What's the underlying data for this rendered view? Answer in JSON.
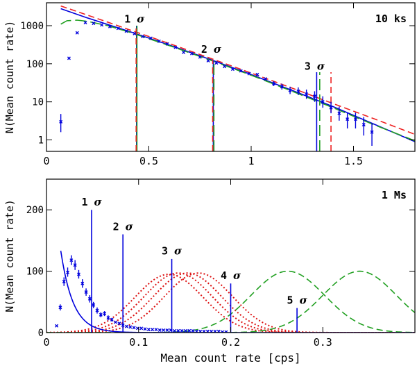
{
  "chart_data": [
    {
      "type": "scatter",
      "panel_label": "10 ks",
      "ylabel": "N(Mean count rate)",
      "xlabel": "",
      "yscale": "log",
      "xlim": [
        0,
        1.8
      ],
      "ylim": [
        0.5,
        4000
      ],
      "x_ticks": [
        0,
        0.5,
        1,
        1.5
      ],
      "x_tick_labels": [
        "0",
        "0.5",
        "1",
        "1.5"
      ],
      "y_ticks": [
        1,
        10,
        100,
        1000
      ],
      "y_tick_labels": [
        "1",
        "10",
        "100",
        "1000"
      ],
      "points": [
        {
          "x": 0.07,
          "y": 3.0,
          "lo": 1.6,
          "hi": 4.8
        },
        {
          "x": 0.11,
          "y": 140
        },
        {
          "x": 0.15,
          "y": 650
        },
        {
          "x": 0.19,
          "y": 1200
        },
        {
          "x": 0.23,
          "y": 1150
        },
        {
          "x": 0.27,
          "y": 1050
        },
        {
          "x": 0.31,
          "y": 950
        },
        {
          "x": 0.35,
          "y": 850
        },
        {
          "x": 0.39,
          "y": 720
        },
        {
          "x": 0.43,
          "y": 620
        },
        {
          "x": 0.47,
          "y": 520
        },
        {
          "x": 0.51,
          "y": 470
        },
        {
          "x": 0.55,
          "y": 390
        },
        {
          "x": 0.59,
          "y": 330
        },
        {
          "x": 0.63,
          "y": 270
        },
        {
          "x": 0.67,
          "y": 200
        },
        {
          "x": 0.71,
          "y": 185
        },
        {
          "x": 0.75,
          "y": 150
        },
        {
          "x": 0.79,
          "y": 120
        },
        {
          "x": 0.83,
          "y": 105
        },
        {
          "x": 0.87,
          "y": 85
        },
        {
          "x": 0.91,
          "y": 72
        },
        {
          "x": 0.95,
          "y": 65
        },
        {
          "x": 0.99,
          "y": 55
        },
        {
          "x": 1.03,
          "y": 52
        },
        {
          "x": 1.07,
          "y": 40
        },
        {
          "x": 1.11,
          "y": 30,
          "lo": 26,
          "hi": 35
        },
        {
          "x": 1.15,
          "y": 25,
          "lo": 21,
          "hi": 30
        },
        {
          "x": 1.19,
          "y": 20,
          "lo": 16,
          "hi": 25
        },
        {
          "x": 1.23,
          "y": 19,
          "lo": 15,
          "hi": 24
        },
        {
          "x": 1.27,
          "y": 16,
          "lo": 12,
          "hi": 21
        },
        {
          "x": 1.31,
          "y": 14,
          "lo": 10,
          "hi": 19
        },
        {
          "x": 1.35,
          "y": 10,
          "lo": 7,
          "hi": 14
        },
        {
          "x": 1.39,
          "y": 7,
          "lo": 5,
          "hi": 10
        },
        {
          "x": 1.43,
          "y": 5,
          "lo": 3.2,
          "hi": 7.5
        },
        {
          "x": 1.47,
          "y": 3.5,
          "lo": 2.0,
          "hi": 5.2
        },
        {
          "x": 1.51,
          "y": 3.5,
          "lo": 2.0,
          "hi": 5.2
        },
        {
          "x": 1.55,
          "y": 2.5,
          "lo": 1.3,
          "hi": 4.0
        },
        {
          "x": 1.59,
          "y": 1.6,
          "lo": 0.7,
          "hi": 2.8
        }
      ],
      "curves": [
        {
          "color": "#0000dd",
          "dash": "solid",
          "x": [
            0.07,
            0.2,
            0.4,
            0.6,
            0.8,
            1.0,
            1.2,
            1.4,
            1.6,
            1.8
          ],
          "y": [
            2800,
            1600,
            720,
            310,
            130,
            52,
            20,
            7.5,
            2.6,
            0.9
          ]
        },
        {
          "color": "#ee2222",
          "dash": "dashed",
          "x": [
            0.07,
            0.2,
            0.4,
            0.6,
            0.8,
            1.0,
            1.2,
            1.4,
            1.6,
            1.8
          ],
          "y": [
            3300,
            1900,
            800,
            340,
            140,
            57,
            23,
            9,
            3.6,
            1.4
          ]
        },
        {
          "color": "#22a022",
          "dash": "long-dash",
          "x": [
            0.07,
            0.1,
            0.15,
            0.2,
            0.3,
            0.4,
            0.6,
            0.8,
            1.0,
            1.2,
            1.4,
            1.6,
            1.8
          ],
          "y": [
            1100,
            1350,
            1400,
            1300,
            1000,
            690,
            300,
            125,
            50,
            19,
            7,
            2.5,
            0.95
          ]
        }
      ],
      "markers": [
        {
          "x": 0.44,
          "label": "1",
          "label_y": 1500,
          "top": 1000,
          "lines": [
            {
              "color": "#0000dd",
              "dash": "solid",
              "dx": 0
            },
            {
              "color": "#22a022",
              "dash": "solid",
              "dx": 0.002
            },
            {
              "color": "#ee2222",
              "dash": "dashed",
              "dx": -0.002
            }
          ]
        },
        {
          "x": 0.815,
          "label": "2",
          "label_y": 240,
          "top": 125,
          "lines": [
            {
              "color": "#0000dd",
              "dash": "solid",
              "dx": 0
            },
            {
              "color": "#22a022",
              "dash": "long-dash",
              "dx": 0.003
            },
            {
              "color": "#ee2222",
              "dash": "dashed",
              "dx": -0.003
            }
          ]
        },
        {
          "x": 1.32,
          "label": "3",
          "label_y": 85,
          "top": 60,
          "lines": [
            {
              "color": "#0000dd",
              "dash": "solid",
              "dx": 0
            },
            {
              "color": "#22a022",
              "dash": "long-dash",
              "dx": 0.015
            },
            {
              "color": "#ee2222",
              "dash": "dashed",
              "dx": 0.07
            }
          ]
        }
      ]
    },
    {
      "type": "scatter",
      "panel_label": "1 Ms",
      "xlabel": "Mean count rate [cps]",
      "ylabel": "N(Mean count rate)",
      "xlim": [
        0,
        0.4
      ],
      "ylim": [
        0,
        250
      ],
      "x_ticks": [
        0,
        0.1,
        0.2,
        0.3
      ],
      "x_tick_labels": [
        "0",
        "0.1",
        "0.2",
        "0.3"
      ],
      "y_ticks": [
        0,
        100,
        200
      ],
      "y_tick_labels": [
        "0",
        "100",
        "200"
      ],
      "points": [
        {
          "x": 0.011,
          "y": 11
        },
        {
          "x": 0.015,
          "y": 41,
          "lo": 36,
          "hi": 46
        },
        {
          "x": 0.019,
          "y": 83,
          "lo": 76,
          "hi": 90
        },
        {
          "x": 0.023,
          "y": 98,
          "lo": 91,
          "hi": 106
        },
        {
          "x": 0.027,
          "y": 118,
          "lo": 110,
          "hi": 126
        },
        {
          "x": 0.031,
          "y": 110,
          "lo": 102,
          "hi": 118
        },
        {
          "x": 0.035,
          "y": 95,
          "lo": 88,
          "hi": 102
        },
        {
          "x": 0.039,
          "y": 80,
          "lo": 73,
          "hi": 87
        },
        {
          "x": 0.043,
          "y": 66,
          "lo": 60,
          "hi": 72
        },
        {
          "x": 0.047,
          "y": 55,
          "lo": 49,
          "hi": 61
        },
        {
          "x": 0.051,
          "y": 45,
          "lo": 40,
          "hi": 50
        },
        {
          "x": 0.055,
          "y": 36,
          "lo": 31,
          "hi": 41
        },
        {
          "x": 0.059,
          "y": 29,
          "lo": 25,
          "hi": 33
        },
        {
          "x": 0.063,
          "y": 31,
          "lo": 27,
          "hi": 35
        },
        {
          "x": 0.067,
          "y": 24,
          "lo": 20,
          "hi": 28
        },
        {
          "x": 0.071,
          "y": 21,
          "lo": 18,
          "hi": 24
        },
        {
          "x": 0.075,
          "y": 17
        },
        {
          "x": 0.079,
          "y": 15
        },
        {
          "x": 0.083,
          "y": 12
        },
        {
          "x": 0.087,
          "y": 10
        },
        {
          "x": 0.091,
          "y": 9
        },
        {
          "x": 0.095,
          "y": 8
        },
        {
          "x": 0.099,
          "y": 7
        },
        {
          "x": 0.103,
          "y": 7
        },
        {
          "x": 0.107,
          "y": 6
        },
        {
          "x": 0.111,
          "y": 5
        },
        {
          "x": 0.115,
          "y": 5
        },
        {
          "x": 0.119,
          "y": 5
        },
        {
          "x": 0.123,
          "y": 4
        },
        {
          "x": 0.127,
          "y": 4
        },
        {
          "x": 0.131,
          "y": 4
        },
        {
          "x": 0.135,
          "y": 4
        },
        {
          "x": 0.139,
          "y": 3
        },
        {
          "x": 0.143,
          "y": 3
        },
        {
          "x": 0.147,
          "y": 3
        },
        {
          "x": 0.151,
          "y": 3
        },
        {
          "x": 0.155,
          "y": 3
        },
        {
          "x": 0.159,
          "y": 3
        },
        {
          "x": 0.163,
          "y": 2
        },
        {
          "x": 0.167,
          "y": 2
        },
        {
          "x": 0.171,
          "y": 2
        },
        {
          "x": 0.175,
          "y": 2
        },
        {
          "x": 0.179,
          "y": 2
        },
        {
          "x": 0.183,
          "y": 2
        },
        {
          "x": 0.187,
          "y": 2
        },
        {
          "x": 0.191,
          "y": 1
        },
        {
          "x": 0.195,
          "y": 1
        }
      ],
      "decay_curve": {
        "color": "#0000dd",
        "amplitude": 420,
        "scale": 0.0135,
        "x_start": 0.0155,
        "x_end": 0.4
      },
      "gaussians": [
        {
          "color": "#dd1111",
          "dash": "dotted",
          "mu": 0.133,
          "sigma": 0.037,
          "amp": 95
        },
        {
          "color": "#dd1111",
          "dash": "dotted",
          "mu": 0.143,
          "sigma": 0.037,
          "amp": 97
        },
        {
          "color": "#dd1111",
          "dash": "dotted",
          "mu": 0.153,
          "sigma": 0.037,
          "amp": 97
        },
        {
          "color": "#dd1111",
          "dash": "dotted",
          "mu": 0.165,
          "sigma": 0.037,
          "amp": 97
        },
        {
          "color": "#22a022",
          "dash": "dashed",
          "mu": 0.262,
          "sigma": 0.04,
          "amp": 100
        },
        {
          "color": "#22a022",
          "dash": "dashed",
          "mu": 0.34,
          "sigma": 0.04,
          "amp": 100
        }
      ],
      "markers": [
        {
          "x": 0.049,
          "top": 200,
          "label": "1",
          "label_x": 0.049,
          "label_y": 207
        },
        {
          "x": 0.083,
          "top": 160,
          "label": "2",
          "label_x": 0.083,
          "label_y": 167
        },
        {
          "x": 0.136,
          "top": 120,
          "label": "3",
          "label_x": 0.136,
          "label_y": 127
        },
        {
          "x": 0.2,
          "top": 80,
          "label": "4",
          "label_x": 0.2,
          "label_y": 87
        },
        {
          "x": 0.272,
          "top": 40,
          "label": "5",
          "label_x": 0.272,
          "label_y": 47
        }
      ]
    }
  ],
  "sigma_symbol": "σ"
}
